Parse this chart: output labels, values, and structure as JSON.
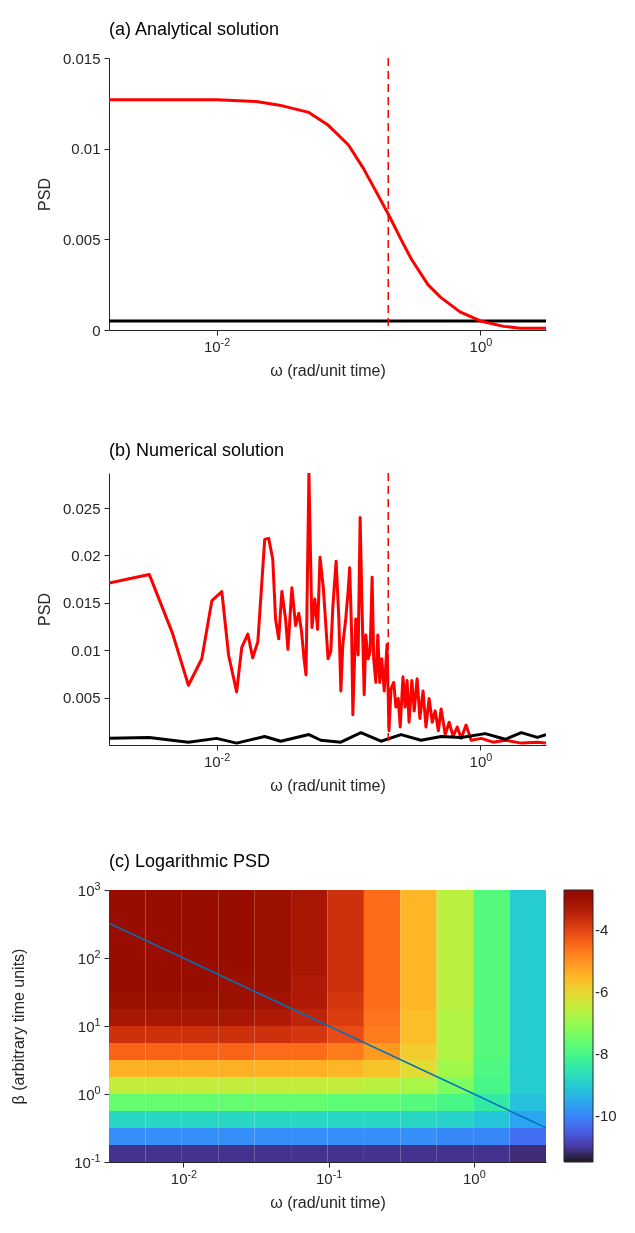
{
  "chart_data": [
    {
      "type": "line",
      "title": "(a) Analytical solution",
      "xlabel": "ω (rad/unit time)",
      "ylabel": "PSD",
      "log": "x",
      "xlim": [
        0.00153,
        3.14
      ],
      "ylim": [
        0,
        0.015
      ],
      "xticks": [
        {
          "value": 0.01,
          "label": "10$^{-2}$"
        },
        {
          "value": 1,
          "label": "10$^{0}$"
        }
      ],
      "yticks": [
        0,
        0.005,
        0.01,
        0.015
      ],
      "series": [
        {
          "color": "#000000",
          "x": [
            0.00153,
            3.14
          ],
          "values": [
            0.0005,
            0.0005
          ]
        },
        {
          "color": "#ff0000",
          "x": [
            0.00153,
            0.003,
            0.01,
            0.02,
            0.03,
            0.05,
            0.07,
            0.1,
            0.13,
            0.16,
            0.2,
            0.25,
            0.3,
            0.4,
            0.5,
            0.7,
            1.0,
            1.5,
            2.0,
            3.14
          ],
          "values": [
            0.0127,
            0.0127,
            0.0127,
            0.0126,
            0.0124,
            0.012,
            0.0113,
            0.0102,
            0.0089,
            0.0077,
            0.0064,
            0.005,
            0.0039,
            0.0025,
            0.0018,
            0.001,
            0.0005,
            0.0002,
            0.0001,
            0.0001
          ]
        }
      ],
      "ref_lines": [
        {
          "axis": "x",
          "value": 0.2,
          "color": "#ff0000",
          "line_style": "dashed"
        }
      ]
    },
    {
      "type": "line",
      "title": "(b) Numerical solution",
      "xlabel": "ω (rad/unit time)",
      "ylabel": "PSD",
      "log": "x",
      "xlim": [
        0.00153,
        3.14
      ],
      "ylim": [
        0,
        0.0287
      ],
      "xticks": [
        {
          "value": 0.01,
          "label": "10$^{-2}$"
        },
        {
          "value": 1,
          "label": "10$^{0}$"
        }
      ],
      "yticks": [
        0.005,
        0.01,
        0.015,
        0.02,
        0.025
      ],
      "series": [
        {
          "color": "#ff0000",
          "x": [
            0.00153,
            0.00309,
            0.00463,
            0.00612,
            0.00773,
            0.0092,
            0.01096,
            0.01233,
            0.01419,
            0.01552,
            0.01726,
            0.01879,
            0.02056,
            0.02317,
            0.02483,
            0.02667,
            0.02799,
            0.02958,
            0.03126,
            0.03334,
            0.03475,
            0.03724,
            0.03972,
            0.04198,
            0.04406,
            0.04603,
            0.04764,
            0.05012,
            0.05284,
            0.05559,
            0.05834,
            0.06081,
            0.06442,
            0.06714,
            0.06998,
            0.07345,
            0.07603,
            0.08054,
            0.08453,
            0.0875,
            0.09057,
            0.09528,
            0.09931,
            0.1021,
            0.1057,
            0.1079,
            0.1135,
            0.1183,
            0.1225,
            0.1268,
            0.1315,
            0.1352,
            0.1409,
            0.1459,
            0.151,
            0.1552,
            0.1611,
            0.1667,
            0.1726,
            0.1786,
            0.1866,
            0.1959,
            0.2028,
            0.2099,
            0.2203,
            0.2286,
            0.2382,
            0.2466,
            0.2588,
            0.2685,
            0.278,
            0.2877,
            0.302,
            0.3148,
            0.3311,
            0.3475,
            0.3673,
            0.3864,
            0.4083,
            0.4315,
            0.4539,
            0.4797,
            0.5035,
            0.5408,
            0.5794,
            0.6209,
            0.6668,
            0.7145,
            0.778,
            0.8511,
            1.014,
            1.25,
            1.542,
            2.042,
            2.704,
            3.14
          ],
          "values": [
            0.0171,
            0.018,
            0.0118,
            0.0063,
            0.0091,
            0.0152,
            0.0162,
            0.0095,
            0.0056,
            0.0103,
            0.0117,
            0.0092,
            0.0109,
            0.0217,
            0.0218,
            0.0196,
            0.0133,
            0.0112,
            0.0162,
            0.0133,
            0.0101,
            0.0166,
            0.0126,
            0.0139,
            0.012,
            0.0091,
            0.0074,
            0.0287,
            0.0124,
            0.0154,
            0.0122,
            0.0198,
            0.0166,
            0.0129,
            0.0091,
            0.0099,
            0.0145,
            0.0194,
            0.0133,
            0.0057,
            0.0106,
            0.0133,
            0.0162,
            0.0187,
            0.0116,
            0.0032,
            0.0133,
            0.0095,
            0.024,
            0.0141,
            0.0053,
            0.0116,
            0.0091,
            0.0099,
            0.0177,
            0.0091,
            0.0066,
            0.0116,
            0.0066,
            0.0091,
            0.0057,
            0.0106,
            0.0015,
            0.0059,
            0.0066,
            0.004,
            0.0049,
            0.0019,
            0.0072,
            0.004,
            0.0068,
            0.0024,
            0.0068,
            0.0036,
            0.007,
            0.0028,
            0.0057,
            0.0019,
            0.0049,
            0.0024,
            0.0036,
            0.0015,
            0.0038,
            0.0011,
            0.0024,
            0.0009,
            0.0019,
            0.0007,
            0.0021,
            0.0005,
            0.0007,
            0.0003,
            0.0005,
            0.0002,
            0.0003,
            0.0002
          ]
        },
        {
          "color": "#000000",
          "x": [
            0.00153,
            0.00309,
            0.00612,
            0.01,
            0.01419,
            0.02317,
            0.03062,
            0.0501,
            0.0617,
            0.0875,
            0.1242,
            0.1762,
            0.25,
            0.3548,
            0.5035,
            0.7145,
            1.087,
            1.542,
            2.042,
            2.704,
            3.14
          ],
          "values": [
            0.0007,
            0.0008,
            0.0003,
            0.0007,
            0.0002,
            0.0009,
            0.0004,
            0.0011,
            0.0005,
            0.0003,
            0.0013,
            0.0004,
            0.0011,
            0.0005,
            0.0009,
            0.0008,
            0.0012,
            0.0006,
            0.0013,
            0.0008,
            0.0011
          ]
        }
      ],
      "ref_lines": [
        {
          "axis": "x",
          "value": 0.2,
          "color": "#ff0000",
          "line_style": "dashed"
        }
      ]
    },
    {
      "type": "heatmap",
      "title": "(c) Logarithmic PSD",
      "xlabel": "ω (rad/unit time)",
      "ylabel": "β (arbitrary time units)",
      "log": "xy",
      "xlim": [
        0.00307,
        3.14
      ],
      "ylim": [
        0.1,
        1000
      ],
      "xticks": [
        {
          "value": 0.01,
          "label": "10$^{-2}$"
        },
        {
          "value": 0.1,
          "label": "10$^{-1}$"
        },
        {
          "value": 1,
          "label": "10$^{0}$"
        }
      ],
      "yticks": [
        {
          "value": 0.1,
          "label": "10$^{-1}$"
        },
        {
          "value": 1,
          "label": "10$^{0}$"
        },
        {
          "value": 10,
          "label": "10$^{1}$"
        },
        {
          "value": 100,
          "label": "10$^{2}$"
        },
        {
          "value": 1000,
          "label": "10$^{3}$"
        }
      ],
      "clim": [
        -11.5,
        -2.7
      ],
      "cticks": [
        -4,
        -6,
        -8,
        -10
      ],
      "cells": [
        [
          -2.9,
          -2.9,
          -2.9,
          -2.9,
          -3.0,
          -3.2,
          -3.7,
          -4.5,
          -5.5,
          -6.6,
          -7.8,
          -9.0
        ],
        [
          -2.9,
          -2.9,
          -2.9,
          -2.9,
          -3.0,
          -3.2,
          -3.7,
          -4.5,
          -5.5,
          -6.6,
          -7.8,
          -9.0
        ],
        [
          -2.9,
          -2.9,
          -2.9,
          -2.9,
          -3.0,
          -3.2,
          -3.7,
          -4.5,
          -5.5,
          -6.6,
          -7.8,
          -9.0
        ],
        [
          -2.9,
          -2.9,
          -2.9,
          -2.9,
          -3.0,
          -3.2,
          -3.7,
          -4.5,
          -5.5,
          -6.6,
          -7.8,
          -9.0
        ],
        [
          -2.9,
          -2.9,
          -2.9,
          -2.9,
          -3.0,
          -3.2,
          -3.7,
          -4.5,
          -5.5,
          -6.6,
          -7.8,
          -9.0
        ],
        [
          -2.9,
          -2.9,
          -2.9,
          -3.0,
          -3.0,
          -3.3,
          -3.7,
          -4.5,
          -5.5,
          -6.6,
          -7.8,
          -9.0
        ],
        [
          -3.0,
          -3.0,
          -3.0,
          -3.0,
          -3.1,
          -3.3,
          -3.8,
          -4.5,
          -5.5,
          -6.6,
          -7.8,
          -9.0
        ],
        [
          -3.2,
          -3.2,
          -3.2,
          -3.2,
          -3.3,
          -3.5,
          -3.9,
          -4.6,
          -5.6,
          -6.7,
          -7.8,
          -9.0
        ],
        [
          -3.7,
          -3.7,
          -3.7,
          -3.7,
          -3.7,
          -3.8,
          -4.1,
          -4.7,
          -5.6,
          -6.7,
          -7.8,
          -9.0
        ],
        [
          -4.4,
          -4.4,
          -4.4,
          -4.4,
          -4.5,
          -4.5,
          -4.7,
          -5.1,
          -5.8,
          -6.7,
          -7.8,
          -9.0
        ],
        [
          -5.4,
          -5.4,
          -5.4,
          -5.4,
          -5.4,
          -5.4,
          -5.5,
          -5.7,
          -6.1,
          -6.9,
          -7.9,
          -9.0
        ],
        [
          -6.5,
          -6.5,
          -6.5,
          -6.5,
          -6.5,
          -6.5,
          -6.5,
          -6.6,
          -6.8,
          -7.3,
          -8.0,
          -9.0
        ],
        [
          -7.6,
          -7.6,
          -7.6,
          -7.6,
          -7.6,
          -7.6,
          -7.7,
          -7.7,
          -7.8,
          -8.0,
          -8.4,
          -9.2
        ],
        [
          -8.8,
          -8.8,
          -8.8,
          -8.8,
          -8.8,
          -8.8,
          -8.8,
          -8.8,
          -8.8,
          -8.9,
          -9.1,
          -9.6
        ],
        [
          -9.9,
          -9.9,
          -9.9,
          -9.9,
          -9.9,
          -9.9,
          -9.9,
          -9.9,
          -9.9,
          -10.0,
          -10.0,
          -10.3
        ],
        [
          -11.1,
          -11.1,
          -11.1,
          -11.1,
          -11.1,
          -11.1,
          -11.1,
          -11.1,
          -11.1,
          -11.1,
          -11.1,
          -11.2
        ]
      ],
      "series": [
        {
          "type": "line",
          "color": "#0072bd",
          "x": [
            0.00307,
            3.14
          ],
          "values": [
            325,
            0.318
          ]
        }
      ]
    }
  ]
}
